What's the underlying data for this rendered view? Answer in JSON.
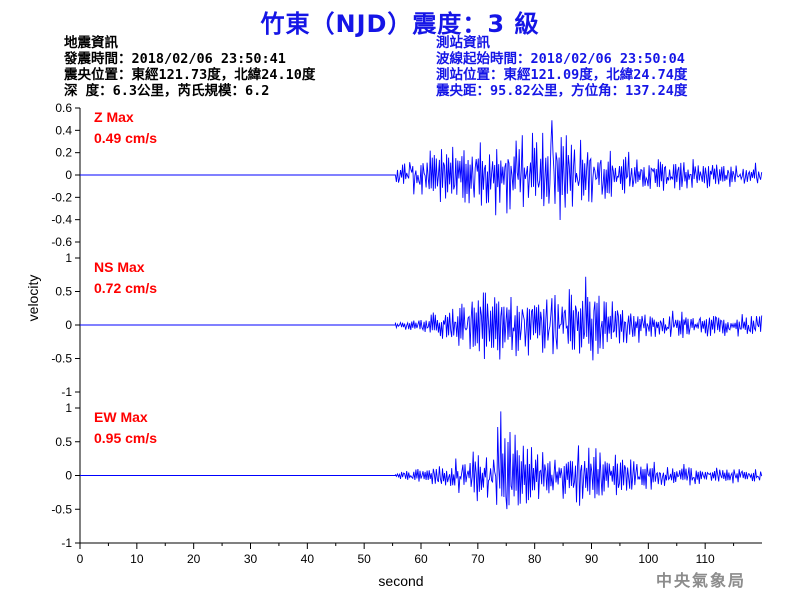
{
  "header": {
    "title": "竹東（NJD）震度：3 級"
  },
  "quake_info": {
    "heading": "地震資訊",
    "time": "發震時間：2018/02/06 23:50:41",
    "epicenter": "震央位置：東經121.73度，北緯24.10度",
    "depth_magnitude": "深  度：6.3公里，芮氏規模：6.2"
  },
  "station_info": {
    "heading": "測站資訊",
    "wave_start": "波線起始時間：2018/02/06 23:50:04",
    "location": "測站位置：東經121.09度，北緯24.74度",
    "distance": "震央距：95.82公里，方位角：137.24度"
  },
  "agency": "中央氣象局",
  "chart_data": {
    "type": "line",
    "xlabel": "second",
    "ylabel": "velocity",
    "xlim": [
      0,
      120
    ],
    "xticks": [
      0,
      10,
      20,
      30,
      40,
      50,
      60,
      70,
      80,
      90,
      100,
      110
    ],
    "line_color": "#0000ff",
    "label_color": "#ff0000",
    "panels": [
      {
        "name": "Z",
        "max_label": "Z Max",
        "max_value": "0.49 cm/s",
        "peak": 0.49,
        "ylim": [
          -0.6,
          0.6
        ],
        "yticks": [
          0.6,
          0.4,
          0.2,
          0,
          -0.2,
          -0.4,
          -0.6
        ],
        "ytick_labels": [
          "0.6",
          "0.4",
          "0.2",
          "0",
          "-0.2",
          "-0.4",
          "-0.6"
        ],
        "onset": 55.5,
        "peak_time": 83,
        "envelope": [
          [
            55.5,
            0.1
          ],
          [
            60,
            0.22
          ],
          [
            65,
            0.28
          ],
          [
            70,
            0.32
          ],
          [
            75,
            0.38
          ],
          [
            80,
            0.4
          ],
          [
            83,
            0.49
          ],
          [
            86,
            0.38
          ],
          [
            90,
            0.3
          ],
          [
            95,
            0.22
          ],
          [
            100,
            0.18
          ],
          [
            110,
            0.14
          ],
          [
            120,
            0.12
          ]
        ]
      },
      {
        "name": "NS",
        "max_label": "NS Max",
        "max_value": "0.72 cm/s",
        "peak": 0.72,
        "ylim": [
          -1,
          1
        ],
        "yticks": [
          1,
          0.5,
          0,
          -0.5,
          -1
        ],
        "ytick_labels": [
          "1",
          "0.5",
          "0",
          "-0.5",
          "-1"
        ],
        "onset": 55.5,
        "peak_time": 89,
        "envelope": [
          [
            55.5,
            0.04
          ],
          [
            60,
            0.12
          ],
          [
            64,
            0.25
          ],
          [
            68,
            0.45
          ],
          [
            72,
            0.6
          ],
          [
            76,
            0.62
          ],
          [
            80,
            0.55
          ],
          [
            85,
            0.55
          ],
          [
            89,
            0.72
          ],
          [
            92,
            0.45
          ],
          [
            96,
            0.32
          ],
          [
            100,
            0.25
          ],
          [
            110,
            0.2
          ],
          [
            120,
            0.15
          ]
        ]
      },
      {
        "name": "EW",
        "max_label": "EW Max",
        "max_value": "0.95 cm/s",
        "peak": 0.95,
        "ylim": [
          -1,
          1
        ],
        "yticks": [
          1,
          0.5,
          0,
          -0.5,
          -1
        ],
        "ytick_labels": [
          "1",
          "0.5",
          "0",
          "-0.5",
          "-1"
        ],
        "onset": 55.5,
        "peak_time": 74,
        "envelope": [
          [
            55.5,
            0.05
          ],
          [
            60,
            0.12
          ],
          [
            64,
            0.22
          ],
          [
            68,
            0.4
          ],
          [
            71,
            0.55
          ],
          [
            74,
            0.95
          ],
          [
            77,
            0.55
          ],
          [
            80,
            0.4
          ],
          [
            85,
            0.42
          ],
          [
            89,
            0.55
          ],
          [
            95,
            0.3
          ],
          [
            100,
            0.22
          ],
          [
            110,
            0.14
          ],
          [
            120,
            0.1
          ]
        ]
      }
    ]
  }
}
